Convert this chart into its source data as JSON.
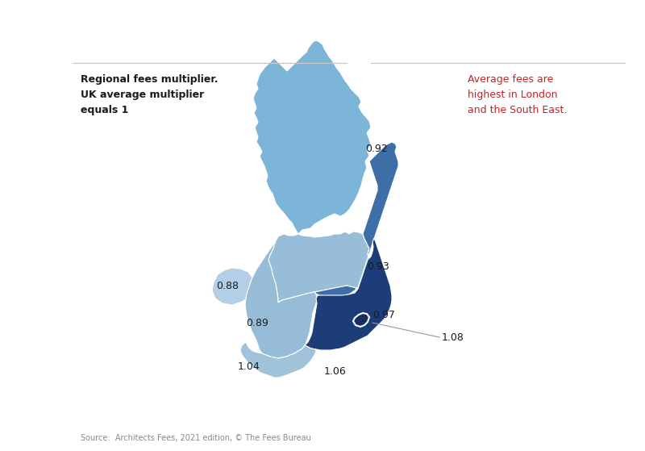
{
  "title_left": "Regional fees multiplier.\nUK average multiplier\nequals 1",
  "title_right": "Average fees are\nhighest in London\nand the South East.",
  "source": "Source:  Architects Fees, 2021 edition, © The Fees Bureau",
  "background_color": "#ffffff",
  "regions": {
    "Scotland": {
      "value": "0.92",
      "color": "#7db5d8"
    },
    "Northern Ireland": {
      "value": "0.88",
      "color": "#b3cfe8"
    },
    "North England": {
      "value": "0.93",
      "color": "#98bdd9"
    },
    "Midlands Wales": {
      "value": "0.89",
      "color": "#96bcd8"
    },
    "East England": {
      "value": "0.97",
      "color": "#3d6ea6"
    },
    "South West": {
      "value": "1.04",
      "color": "#a0c3da"
    },
    "South East": {
      "value": "1.06",
      "color": "#1c3d78"
    },
    "London": {
      "value": "1.08",
      "color": "#152d60"
    }
  },
  "separator_line_color": "#c8c8c8",
  "label_color": "#1a1a1a",
  "red_text_color": "#cc2222",
  "source_color": "#888888",
  "leader_line_color": "#999999"
}
